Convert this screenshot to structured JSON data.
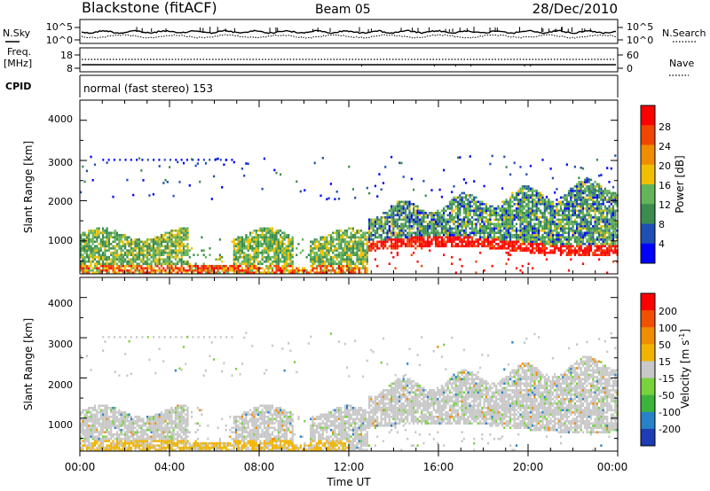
{
  "header": {
    "station": "Blackstone (fitACF)",
    "beam": "Beam 05",
    "date": "28/Dec/2010"
  },
  "chart_data": [
    {
      "type": "line",
      "panel": "noise",
      "left_label": "N.Sky",
      "right_label": "N.Search",
      "left_ticks": [
        "10^5",
        "10^0"
      ],
      "right_ticks": [
        "10^5",
        "10^0"
      ],
      "grid": false
    },
    {
      "type": "line",
      "panel": "frequency",
      "left_label": "Freq.",
      "left_unit": "[MHz]",
      "right_label": "Nave",
      "left_ticks": [
        "18",
        "8"
      ],
      "right_ticks": [
        "60",
        "0"
      ],
      "grid": false
    },
    {
      "type": "table",
      "panel": "cpid",
      "label": "CPID",
      "mode_text": "normal (fast stereo) 153"
    },
    {
      "type": "heatmap",
      "panel": "power",
      "ylabel": "Slant Range [km]",
      "xlabel": "",
      "ylim": [
        180,
        4500
      ],
      "xlim": [
        0,
        24
      ],
      "y_ticks": [
        "1000",
        "2000",
        "3000",
        "4000"
      ],
      "colorbar": {
        "label": "Power [dB]",
        "ticks": [
          "4",
          "8",
          "12",
          "16",
          "20",
          "24",
          "28"
        ],
        "colors": [
          "#0000ff",
          "#1e50b4",
          "#3c8c50",
          "#64b45a",
          "#f0c000",
          "#f08c00",
          "#f04600",
          "#ff0000"
        ]
      }
    },
    {
      "type": "heatmap",
      "panel": "velocity",
      "ylabel": "Slant Range [km]",
      "xlabel": "Time UT",
      "ylim": [
        180,
        4500
      ],
      "xlim": [
        0,
        24
      ],
      "y_ticks": [
        "1000",
        "2000",
        "3000",
        "4000"
      ],
      "x_ticks": [
        "00:00",
        "04:00",
        "08:00",
        "12:00",
        "16:00",
        "20:00",
        "00:00"
      ],
      "colorbar": {
        "label": "Velocity [m s",
        "label_exponent": "-1",
        "label_close": "]",
        "ticks": [
          "200",
          "100",
          "50",
          "15",
          "-15",
          "-50",
          "-100",
          "-200"
        ],
        "colors": [
          "#1e3cb4",
          "#2882c8",
          "#3cb43c",
          "#78d23c",
          "#c8c8c8",
          "#f0b400",
          "#f08c00",
          "#f05000",
          "#ff0000"
        ]
      }
    }
  ]
}
